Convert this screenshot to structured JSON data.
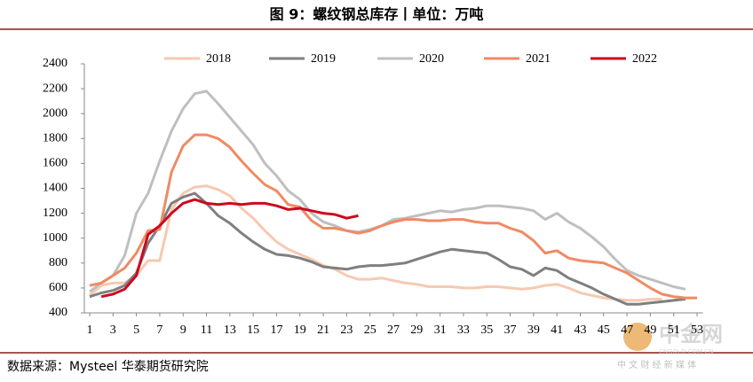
{
  "chart_data": {
    "type": "line",
    "title": "图 9：螺纹钢总库存丨单位：万吨",
    "source": "数据来源：Mysteel  华泰期货研究院",
    "x": [
      1,
      2,
      3,
      4,
      5,
      6,
      7,
      8,
      9,
      10,
      11,
      12,
      13,
      14,
      15,
      16,
      17,
      18,
      19,
      20,
      21,
      22,
      23,
      24,
      25,
      26,
      27,
      28,
      29,
      30,
      31,
      32,
      33,
      34,
      35,
      36,
      37,
      38,
      39,
      40,
      41,
      42,
      43,
      44,
      45,
      46,
      47,
      48,
      49,
      50,
      51,
      52,
      53
    ],
    "xlim": [
      0.5,
      53.5
    ],
    "xticks": [
      1,
      3,
      5,
      7,
      9,
      11,
      13,
      15,
      17,
      19,
      21,
      23,
      25,
      27,
      29,
      31,
      33,
      35,
      37,
      39,
      41,
      43,
      45,
      47,
      49,
      51,
      53
    ],
    "ylim": [
      400,
      2400
    ],
    "yticks": [
      400,
      600,
      800,
      1000,
      1200,
      1400,
      1600,
      1800,
      2000,
      2200,
      2400
    ],
    "legend": "top",
    "series": [
      {
        "name": "2018",
        "color": "#f7c9b0",
        "values": [
          540,
          620,
          640,
          640,
          700,
          820,
          820,
          1230,
          1360,
          1410,
          1420,
          1390,
          1340,
          1240,
          1160,
          1060,
          970,
          910,
          870,
          830,
          780,
          750,
          700,
          670,
          670,
          680,
          660,
          640,
          630,
          610,
          610,
          610,
          600,
          600,
          610,
          610,
          600,
          590,
          600,
          620,
          630,
          600,
          560,
          540,
          520,
          510,
          500,
          500,
          510,
          510,
          null,
          null,
          null
        ]
      },
      {
        "name": "2019",
        "color": "#7f7f7f",
        "values": [
          530,
          560,
          580,
          620,
          720,
          960,
          1100,
          1280,
          1330,
          1360,
          1280,
          1180,
          1120,
          1040,
          970,
          910,
          870,
          860,
          840,
          810,
          770,
          760,
          750,
          770,
          780,
          780,
          790,
          800,
          830,
          860,
          890,
          910,
          900,
          890,
          880,
          830,
          770,
          750,
          700,
          760,
          740,
          680,
          640,
          600,
          550,
          510,
          470,
          470,
          480,
          490,
          500,
          510,
          null
        ]
      },
      {
        "name": "2020",
        "color": "#bfbfbf",
        "values": [
          570,
          640,
          700,
          860,
          1200,
          1360,
          1620,
          1860,
          2040,
          2160,
          2180,
          2080,
          1970,
          1860,
          1750,
          1600,
          1500,
          1380,
          1310,
          1200,
          1130,
          1100,
          1060,
          1050,
          1070,
          1100,
          1150,
          1160,
          1180,
          1200,
          1220,
          1210,
          1230,
          1240,
          1260,
          1260,
          1250,
          1240,
          1220,
          1150,
          1200,
          1130,
          1080,
          1010,
          930,
          830,
          740,
          700,
          670,
          640,
          610,
          590,
          null
        ]
      },
      {
        "name": "2021",
        "color": "#f08a63",
        "values": [
          620,
          640,
          700,
          760,
          880,
          1060,
          1070,
          1530,
          1740,
          1830,
          1830,
          1800,
          1730,
          1620,
          1520,
          1430,
          1380,
          1270,
          1250,
          1140,
          1080,
          1080,
          1060,
          1040,
          1060,
          1100,
          1130,
          1150,
          1150,
          1140,
          1140,
          1150,
          1150,
          1130,
          1120,
          1120,
          1080,
          1050,
          980,
          880,
          900,
          840,
          820,
          810,
          800,
          760,
          720,
          660,
          600,
          550,
          530,
          520,
          520
        ]
      },
      {
        "name": "2022",
        "color": "#cc0a1e",
        "values": [
          null,
          530,
          550,
          590,
          700,
          1030,
          1100,
          1200,
          1280,
          1310,
          1280,
          1270,
          1280,
          1270,
          1280,
          1280,
          1260,
          1230,
          1240,
          1220,
          1200,
          1190,
          1160,
          1180,
          null,
          null,
          null,
          null,
          null,
          null,
          null,
          null,
          null,
          null,
          null,
          null,
          null,
          null,
          null,
          null,
          null,
          null,
          null,
          null,
          null,
          null,
          null,
          null,
          null,
          null,
          null,
          null,
          null
        ]
      }
    ]
  },
  "watermark": {
    "name": "中金网",
    "url": "CNGOLD.COM.CN",
    "tagline": "中 文 财 经 新 媒 体"
  }
}
